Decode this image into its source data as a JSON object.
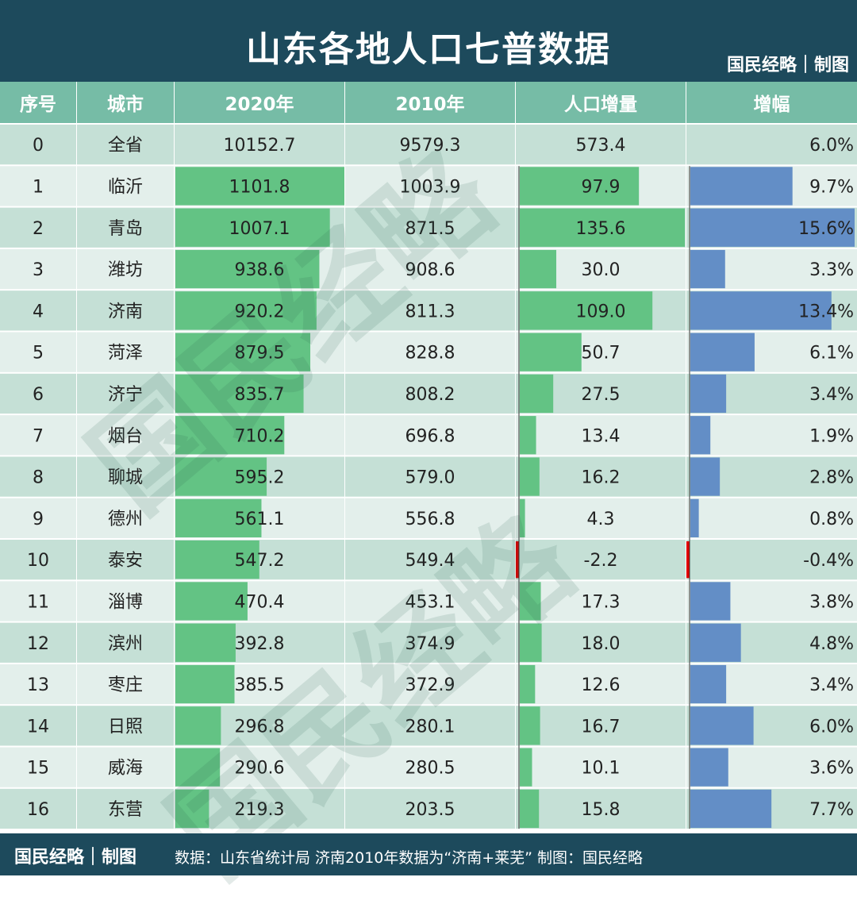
{
  "header": {
    "title": "山东各地人口七普数据",
    "brand": "国民经略｜制图"
  },
  "footer": {
    "brand": "国民经略｜制图",
    "source": "数据：山东省统计局  济南2010年数据为“济南+莱芜”  制图：国民经略"
  },
  "watermark": "国民经略",
  "colors": {
    "header_bg": "#1d4a5c",
    "col_header_bg": "#76bca6",
    "row_dark": "#c5e0d6",
    "row_light": "#e3efeb",
    "bar_green": "#63c384",
    "bar_blue": "#638ec6",
    "bar_negative": "#e00000"
  },
  "chart_data": {
    "type": "table",
    "title": "山东各地人口七普数据",
    "columns": [
      "序号",
      "城市",
      "2020年",
      "2010年",
      "人口增量",
      "增幅"
    ],
    "rows": [
      {
        "rank": "0",
        "city": "全省",
        "pop2020": "10152.7",
        "pop2010": "9579.3",
        "increase": "573.4",
        "growth": "6.0%",
        "growth_value": 6.0,
        "bars": false
      },
      {
        "rank": "1",
        "city": "临沂",
        "pop2020": "1101.8",
        "pop2010": "1003.9",
        "increase": "97.9",
        "growth": "9.7%",
        "growth_value": 9.7,
        "bars": true
      },
      {
        "rank": "2",
        "city": "青岛",
        "pop2020": "1007.1",
        "pop2010": "871.5",
        "increase": "135.6",
        "growth": "15.6%",
        "growth_value": 15.6,
        "bars": true
      },
      {
        "rank": "3",
        "city": "潍坊",
        "pop2020": "938.6",
        "pop2010": "908.6",
        "increase": "30.0",
        "growth": "3.3%",
        "growth_value": 3.3,
        "bars": true
      },
      {
        "rank": "4",
        "city": "济南",
        "pop2020": "920.2",
        "pop2010": "811.3",
        "increase": "109.0",
        "growth": "13.4%",
        "growth_value": 13.4,
        "bars": true
      },
      {
        "rank": "5",
        "city": "菏泽",
        "pop2020": "879.5",
        "pop2010": "828.8",
        "increase": "50.7",
        "growth": "6.1%",
        "growth_value": 6.1,
        "bars": true
      },
      {
        "rank": "6",
        "city": "济宁",
        "pop2020": "835.7",
        "pop2010": "808.2",
        "increase": "27.5",
        "growth": "3.4%",
        "growth_value": 3.4,
        "bars": true
      },
      {
        "rank": "7",
        "city": "烟台",
        "pop2020": "710.2",
        "pop2010": "696.8",
        "increase": "13.4",
        "growth": "1.9%",
        "growth_value": 1.9,
        "bars": true
      },
      {
        "rank": "8",
        "city": "聊城",
        "pop2020": "595.2",
        "pop2010": "579.0",
        "increase": "16.2",
        "growth": "2.8%",
        "growth_value": 2.8,
        "bars": true
      },
      {
        "rank": "9",
        "city": "德州",
        "pop2020": "561.1",
        "pop2010": "556.8",
        "increase": "4.3",
        "growth": "0.8%",
        "growth_value": 0.8,
        "bars": true
      },
      {
        "rank": "10",
        "city": "泰安",
        "pop2020": "547.2",
        "pop2010": "549.4",
        "increase": "-2.2",
        "growth": "-0.4%",
        "growth_value": -0.4,
        "bars": true
      },
      {
        "rank": "11",
        "city": "淄博",
        "pop2020": "470.4",
        "pop2010": "453.1",
        "increase": "17.3",
        "growth": "3.8%",
        "growth_value": 3.8,
        "bars": true
      },
      {
        "rank": "12",
        "city": "滨州",
        "pop2020": "392.8",
        "pop2010": "374.9",
        "increase": "18.0",
        "growth": "4.8%",
        "growth_value": 4.8,
        "bars": true
      },
      {
        "rank": "13",
        "city": "枣庄",
        "pop2020": "385.5",
        "pop2010": "372.9",
        "increase": "12.6",
        "growth": "3.4%",
        "growth_value": 3.4,
        "bars": true
      },
      {
        "rank": "14",
        "city": "日照",
        "pop2020": "296.8",
        "pop2010": "280.1",
        "increase": "16.7",
        "growth": "6.0%",
        "growth_value": 6.0,
        "bars": true
      },
      {
        "rank": "15",
        "city": "威海",
        "pop2020": "290.6",
        "pop2010": "280.5",
        "increase": "10.1",
        "growth": "3.6%",
        "growth_value": 3.6,
        "bars": true
      },
      {
        "rank": "16",
        "city": "东营",
        "pop2020": "219.3",
        "pop2010": "203.5",
        "increase": "15.8",
        "growth": "7.7%",
        "growth_value": 7.7,
        "bars": true
      }
    ]
  }
}
